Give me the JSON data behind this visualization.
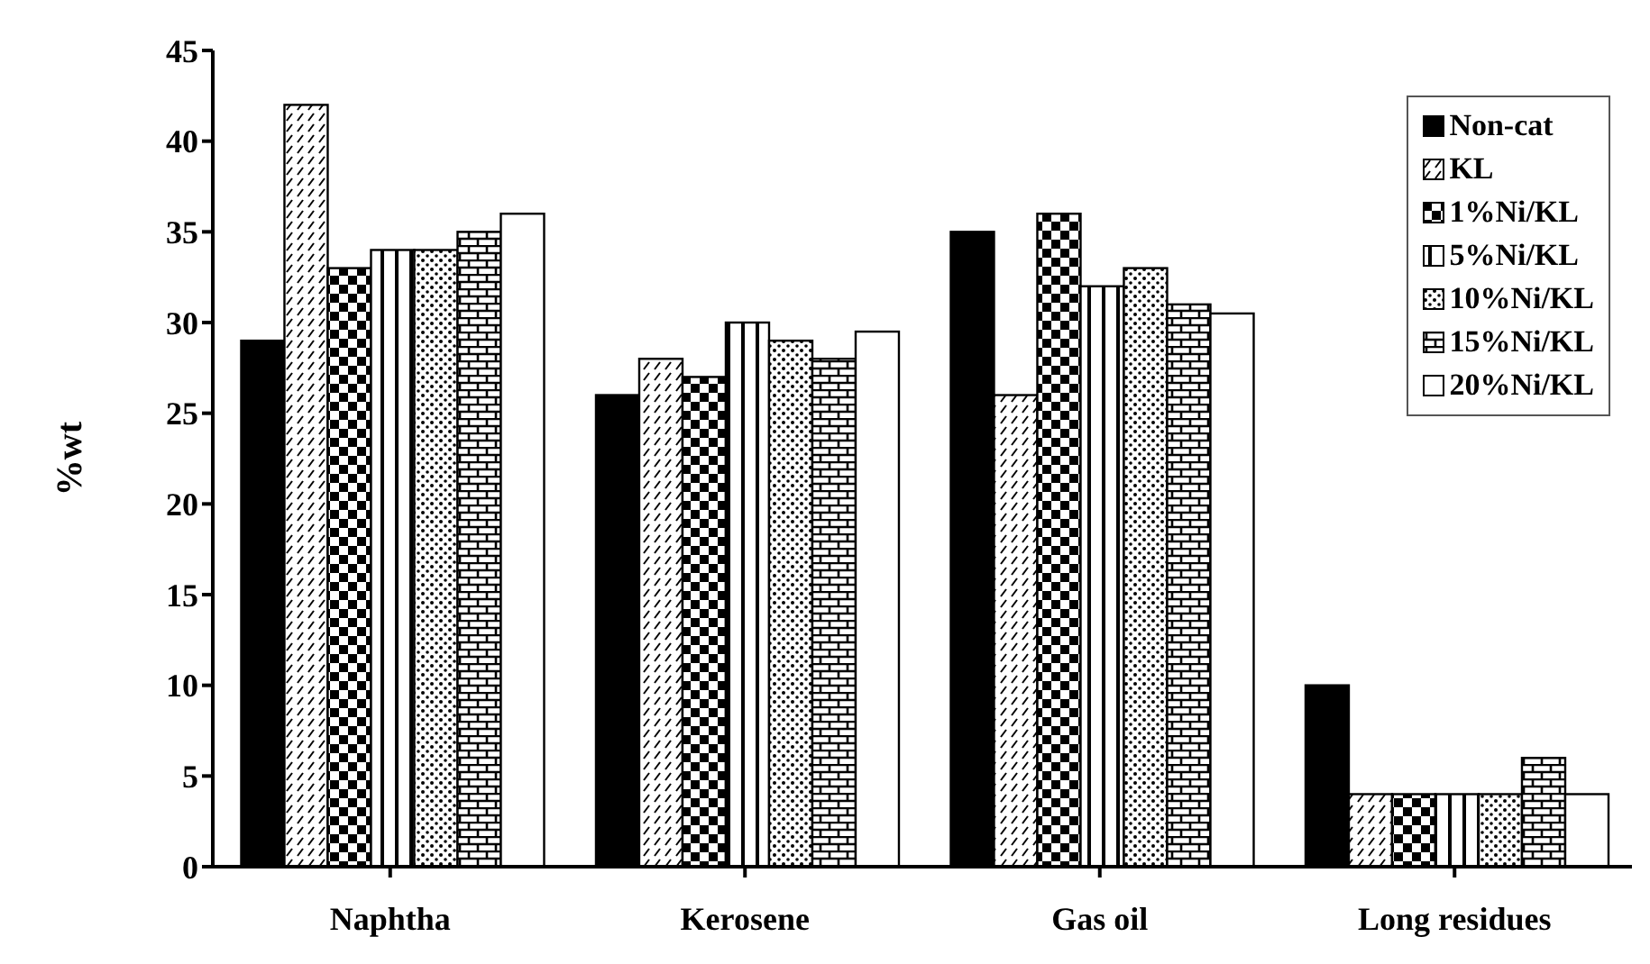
{
  "chart_data": {
    "type": "bar",
    "ylabel": "%wt",
    "categories": [
      "Naphtha",
      "Kerosene",
      "Gas oil",
      "Long residues"
    ],
    "series": [
      {
        "name": "Non-cat",
        "color": "#000000",
        "values": [
          29,
          26,
          35,
          10
        ]
      },
      {
        "name": "KL",
        "color": "#ffffff",
        "values": [
          42,
          28,
          26,
          4
        ]
      },
      {
        "name": "1%Ni/KL",
        "color": "#ffffff",
        "values": [
          33,
          27,
          36,
          4
        ]
      },
      {
        "name": "5%Ni/KL",
        "color": "#ffffff",
        "values": [
          34,
          30,
          32,
          4
        ]
      },
      {
        "name": "10%Ni/KL",
        "color": "#ffffff",
        "values": [
          34,
          29,
          33,
          4
        ]
      },
      {
        "name": "15%Ni/KL",
        "color": "#ffffff",
        "values": [
          35,
          28,
          31,
          6
        ]
      },
      {
        "name": "20%Ni/KL",
        "color": "#ffffff",
        "values": [
          36,
          29.5,
          30.5,
          4
        ]
      }
    ],
    "ylim": [
      0,
      45
    ],
    "yticks": [
      0,
      5,
      10,
      15,
      20,
      25,
      30,
      35,
      40,
      45
    ],
    "grid": false,
    "legend": "top right"
  }
}
